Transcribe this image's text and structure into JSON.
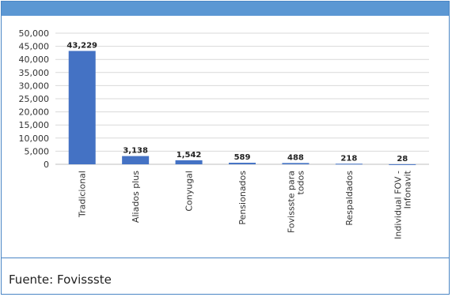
{
  "header": {
    "color": "#5b97d3"
  },
  "source_note": "Fuente: Fovissste",
  "chart_data": {
    "type": "bar",
    "title": "",
    "xlabel": "",
    "ylabel": "",
    "categories": [
      "Tradicional",
      "Aliados plus",
      "Conyugal",
      "Pensionados",
      "Fovissste para todos",
      "Respaldados",
      "Individual FOV - Infonavit"
    ],
    "category_lines": [
      [
        "Tradicional"
      ],
      [
        "Aliados plus"
      ],
      [
        "Conyugal"
      ],
      [
        "Pensionados"
      ],
      [
        "Fovissste para",
        "todos"
      ],
      [
        "Respaldados"
      ],
      [
        "Individual FOV -",
        "Infonavit"
      ]
    ],
    "values": [
      43229,
      3138,
      1542,
      589,
      488,
      218,
      28
    ],
    "data_labels": [
      "43,229",
      "3,138",
      "1,542",
      "589",
      "488",
      "218",
      "28"
    ],
    "ylim": [
      0,
      50000
    ],
    "yticks": [
      0,
      5000,
      10000,
      15000,
      20000,
      25000,
      30000,
      35000,
      40000,
      45000,
      50000
    ],
    "ytick_labels": [
      "0",
      "5,000",
      "10,000",
      "15,000",
      "20,000",
      "25,000",
      "30,000",
      "35,000",
      "40,000",
      "45,000",
      "50,000"
    ],
    "grid": true,
    "bar_color": "#4472c4"
  }
}
